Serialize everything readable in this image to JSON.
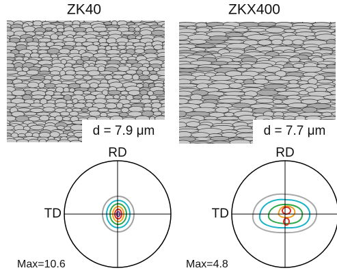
{
  "panels": [
    {
      "title": "ZK40",
      "grain_size": "d = 7.9 μm",
      "pole_figure": {
        "top_label": "RD",
        "left_label": "TD",
        "max_label": "Max=10.6"
      }
    },
    {
      "title": "ZKX400",
      "grain_size": "d = 7.7 μm",
      "pole_figure": {
        "top_label": "RD",
        "left_label": "TD",
        "max_label": "Max=4.8"
      }
    }
  ]
}
